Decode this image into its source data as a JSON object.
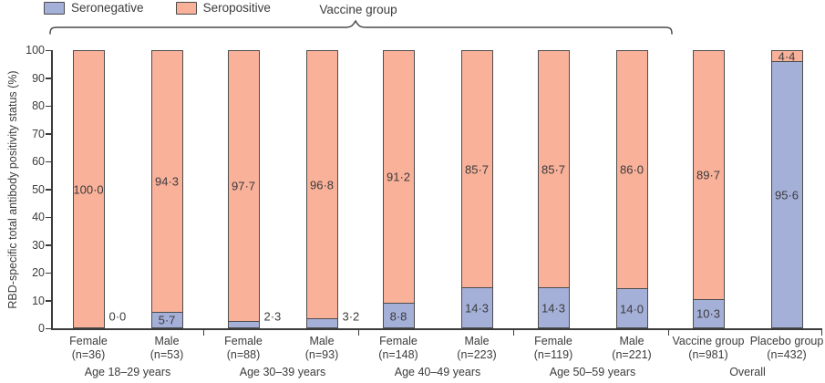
{
  "legend": {
    "items": [
      {
        "label": "Seronegative",
        "color": "#a5b0d9"
      },
      {
        "label": "Seropositive",
        "color": "#f9b19a"
      }
    ]
  },
  "brace_label": "Vaccine group",
  "chart_data": {
    "type": "bar",
    "stacked": true,
    "title": "",
    "xlabel": "",
    "ylabel": "RBD-specific total antibody positivity status (%)",
    "ylim": [
      0,
      100
    ],
    "yticks": [
      0,
      10,
      20,
      30,
      40,
      50,
      60,
      70,
      80,
      90,
      100
    ],
    "legend_position": "top-left",
    "grid": false,
    "stack_order_bottom_to_top": [
      "Seronegative",
      "Seropositive"
    ],
    "colors": {
      "seronegative": "#a5b0d9",
      "seropositive": "#f9b19a",
      "bar_border": "#4d4d4d",
      "axis": "#3b3b3b",
      "text": "#3b3b3b"
    },
    "brace_covers_groups": [
      "Age 18–29 years",
      "Age 30–39 years",
      "Age 40–49 years",
      "Age 50–59 years"
    ],
    "groups": [
      {
        "label": "Age 18–29 years",
        "bars": [
          {
            "label": "Female",
            "n": "(n=36)",
            "seronegative": 0.0,
            "seropositive": 100.0,
            "seronegative_display": "0·0",
            "seropositive_display": "100·0",
            "seronegative_label_outside": true
          },
          {
            "label": "Male",
            "n": "(n=53)",
            "seronegative": 5.7,
            "seropositive": 94.3,
            "seronegative_display": "5·7",
            "seropositive_display": "94·3",
            "seronegative_label_outside": false
          }
        ]
      },
      {
        "label": "Age 30–39 years",
        "bars": [
          {
            "label": "Female",
            "n": "(n=88)",
            "seronegative": 2.3,
            "seropositive": 97.7,
            "seronegative_display": "2·3",
            "seropositive_display": "97·7",
            "seronegative_label_outside": true
          },
          {
            "label": "Male",
            "n": "(n=93)",
            "seronegative": 3.2,
            "seropositive": 96.8,
            "seronegative_display": "3·2",
            "seropositive_display": "96·8",
            "seronegative_label_outside": true
          }
        ]
      },
      {
        "label": "Age 40–49 years",
        "bars": [
          {
            "label": "Female",
            "n": "(n=148)",
            "seronegative": 8.8,
            "seropositive": 91.2,
            "seronegative_display": "8·8",
            "seropositive_display": "91·2",
            "seronegative_label_outside": false
          },
          {
            "label": "Male",
            "n": "(n=223)",
            "seronegative": 14.3,
            "seropositive": 85.7,
            "seronegative_display": "14·3",
            "seropositive_display": "85·7",
            "seronegative_label_outside": false
          }
        ]
      },
      {
        "label": "Age 50–59 years",
        "bars": [
          {
            "label": "Female",
            "n": "(n=119)",
            "seronegative": 14.3,
            "seropositive": 85.7,
            "seronegative_display": "14·3",
            "seropositive_display": "85·7",
            "seronegative_label_outside": false
          },
          {
            "label": "Male",
            "n": "(n=221)",
            "seronegative": 14.0,
            "seropositive": 86.0,
            "seronegative_display": "14·0",
            "seropositive_display": "86·0",
            "seronegative_label_outside": false
          }
        ]
      },
      {
        "label": "Overall",
        "bars": [
          {
            "label": "Vaccine group",
            "n": "(n=981)",
            "seronegative": 10.3,
            "seropositive": 89.7,
            "seronegative_display": "10·3",
            "seropositive_display": "89·7",
            "seronegative_label_outside": false
          },
          {
            "label": "Placebo group",
            "n": "(n=432)",
            "seronegative": 95.6,
            "seropositive": 4.4,
            "seronegative_display": "95·6",
            "seropositive_display": "4·4",
            "seronegative_label_outside": false
          }
        ]
      }
    ]
  }
}
